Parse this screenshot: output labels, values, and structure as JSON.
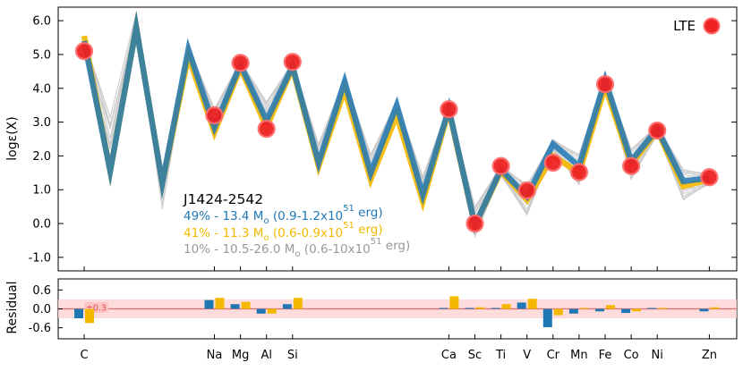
{
  "chart_data": [
    {
      "type": "line",
      "ylabel": "logε(X)",
      "ylim": [
        -1.4,
        6.4
      ],
      "yticks": [
        -1.0,
        0.0,
        1.0,
        2.0,
        3.0,
        4.0,
        5.0,
        6.0
      ],
      "ytick_labels": [
        "-1.0",
        "0.0",
        "1.0",
        "2.0",
        "3.0",
        "4.0",
        "5.0",
        "6.0"
      ],
      "x": [
        6,
        7,
        8,
        9,
        10,
        11,
        12,
        13,
        14,
        15,
        16,
        17,
        18,
        19,
        20,
        21,
        22,
        23,
        24,
        25,
        26,
        27,
        28,
        29,
        30
      ],
      "xtick_labels": [
        {
          "z": 6,
          "label": "C"
        },
        {
          "z": 11,
          "label": "Na"
        },
        {
          "z": 12,
          "label": "Mg"
        },
        {
          "z": 13,
          "label": "Al"
        },
        {
          "z": 14,
          "label": "Si"
        },
        {
          "z": 20,
          "label": "Ca"
        },
        {
          "z": 21,
          "label": "Sc"
        },
        {
          "z": 22,
          "label": "Ti"
        },
        {
          "z": 23,
          "label": "V"
        },
        {
          "z": 24,
          "label": "Cr"
        },
        {
          "z": 25,
          "label": "Mn"
        },
        {
          "z": 26,
          "label": "Fe"
        },
        {
          "z": 27,
          "label": "Co"
        },
        {
          "z": 28,
          "label": "Ni"
        },
        {
          "z": 30,
          "label": "Zn"
        }
      ],
      "star_name": "J1424-2542",
      "legend": [
        "LTE"
      ],
      "annotations": [
        {
          "pct": "49%",
          "mass": "13.4",
          "energy": "(0.9-1.2x10",
          "exp": "51",
          "unit": " erg)",
          "color": "#1f77b4"
        },
        {
          "pct": "41%",
          "mass": "11.3",
          "energy": "(0.6-0.9x10",
          "exp": "51",
          "unit": " erg)",
          "color": "#f5b800"
        },
        {
          "pct": "10%",
          "mass": "10.5-26.0",
          "energy": "(0.6-10x10",
          "exp": "51",
          "unit": " erg)",
          "color": "#999999"
        }
      ],
      "series": [
        {
          "name": "49% - 13.4 Mo (0.9-1.2x10^51 erg)",
          "color": "#1f77b4",
          "values": [
            5.4,
            1.55,
            5.8,
            1.2,
            5.15,
            2.85,
            4.7,
            3.05,
            4.65,
            1.8,
            4.2,
            1.5,
            3.5,
            0.85,
            3.4,
            -0.05,
            1.6,
            0.8,
            2.35,
            1.7,
            4.25,
            1.85,
            2.8,
            1.25,
            1.35
          ]
        },
        {
          "name": "41% - 11.3 Mo (0.6-0.9x10^51 erg)",
          "color": "#f5b800",
          "values": [
            5.55,
            1.55,
            5.8,
            1.2,
            4.95,
            2.7,
            4.6,
            2.85,
            4.6,
            1.7,
            3.95,
            1.3,
            3.2,
            0.65,
            3.35,
            -0.05,
            1.55,
            0.7,
            2.0,
            1.5,
            4.05,
            1.75,
            2.75,
            1.1,
            1.3
          ]
        }
      ],
      "grey_models_count": 25,
      "observed": {
        "label": "LTE",
        "points": [
          {
            "x": 6,
            "y": 5.1
          },
          {
            "x": 11,
            "y": 3.2
          },
          {
            "x": 12,
            "y": 4.75
          },
          {
            "x": 13,
            "y": 2.8
          },
          {
            "x": 14,
            "y": 4.78
          },
          {
            "x": 20,
            "y": 3.38
          },
          {
            "x": 21,
            "y": 0.0
          },
          {
            "x": 22,
            "y": 1.7
          },
          {
            "x": 23,
            "y": 0.98
          },
          {
            "x": 24,
            "y": 1.8
          },
          {
            "x": 25,
            "y": 1.52
          },
          {
            "x": 26,
            "y": 4.12
          },
          {
            "x": 27,
            "y": 1.7
          },
          {
            "x": 28,
            "y": 2.75
          },
          {
            "x": 30,
            "y": 1.37
          }
        ]
      }
    },
    {
      "type": "bar",
      "ylabel": "Residual",
      "ylim": [
        -0.95,
        0.95
      ],
      "yticks": [
        -0.6,
        0.0,
        0.6
      ],
      "ytick_labels": [
        "-0.6",
        "0.0",
        "0.6"
      ],
      "band": 0.3,
      "band_label": "±0.3",
      "series": [
        {
          "name": "blue",
          "color": "#1f77b4",
          "values": {
            "6": -0.3,
            "11": 0.28,
            "12": 0.15,
            "13": -0.15,
            "14": 0.15,
            "20": 0.03,
            "21": 0.03,
            "22": 0.03,
            "23": 0.2,
            "24": -0.58,
            "25": -0.15,
            "26": -0.08,
            "27": -0.13,
            "28": 0.03,
            "30": -0.08
          }
        },
        {
          "name": "yellow",
          "color": "#f5b800",
          "values": {
            "6": -0.45,
            "11": 0.35,
            "12": 0.22,
            "13": -0.15,
            "14": 0.35,
            "20": 0.4,
            "21": 0.05,
            "22": 0.15,
            "23": 0.32,
            "24": -0.2,
            "25": 0.03,
            "26": 0.12,
            "27": -0.08,
            "28": 0.03,
            "30": 0.05
          }
        }
      ]
    }
  ]
}
